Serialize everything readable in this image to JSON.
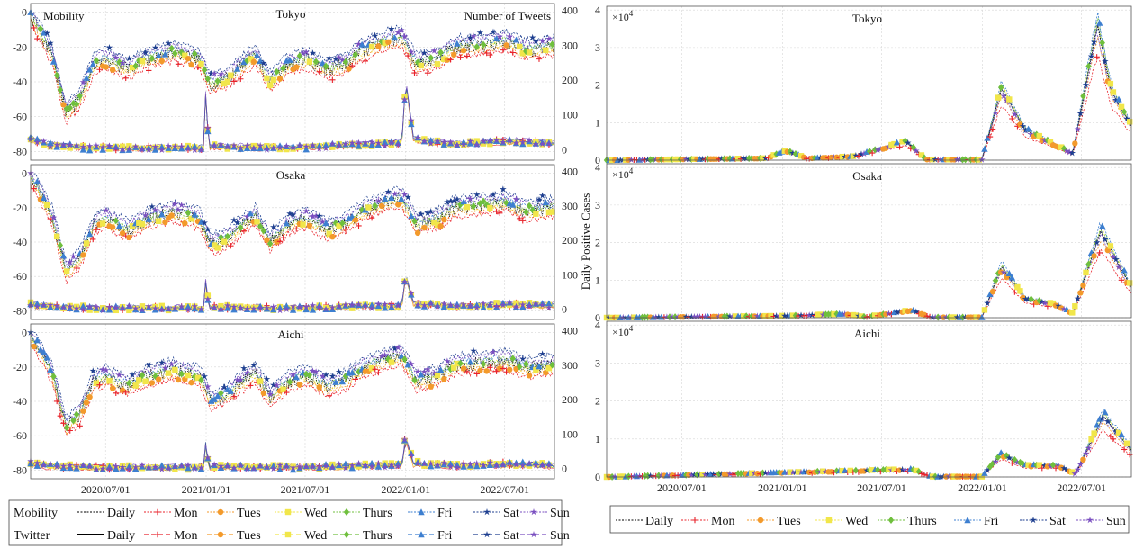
{
  "chart_data": [
    {
      "type": "line",
      "panels": [
        "Tokyo",
        "Osaka",
        "Aichi"
      ],
      "left_axis_label": "Mobility",
      "right_axis_label": "Number of Tweets",
      "y_left_ticks": [
        "0",
        "-20",
        "-40",
        "-60",
        "-80"
      ],
      "y_left_lim": [
        -85,
        5
      ],
      "y_right_ticks": [
        "0",
        "100",
        "200",
        "300",
        "400"
      ],
      "y_right_lim": [
        -30,
        420
      ],
      "x_ticks": [
        "2020/07/01",
        "2021/01/01",
        "2021/07/01",
        "2022/01/01",
        "2022/07/01"
      ],
      "x_range": [
        "2020-02-15",
        "2022-09-30"
      ],
      "grid": true,
      "legend": {
        "placement": "bottom",
        "row_labels": [
          "Mobility",
          "Twitter"
        ],
        "entries": [
          "Daily",
          "Mon",
          "Tues",
          "Wed",
          "Thurs",
          "Fri",
          "Sat",
          "Sun"
        ]
      },
      "series_colors": {
        "Daily": "#000000",
        "Mon": "#e8222a",
        "Tues": "#f39a2b",
        "Wed": "#f1e64a",
        "Thurs": "#6fbf3d",
        "Fri": "#3d7fd0",
        "Sat": "#1d3e8f",
        "Sun": "#7a4fc0"
      },
      "mobility_profile": [
        [
          "2020-02-15",
          -3
        ],
        [
          "2020-03-01",
          -10
        ],
        [
          "2020-03-25",
          -25
        ],
        [
          "2020-04-20",
          -58
        ],
        [
          "2020-05-15",
          -50
        ],
        [
          "2020-06-10",
          -30
        ],
        [
          "2020-07-01",
          -27
        ],
        [
          "2020-08-10",
          -33
        ],
        [
          "2020-09-15",
          -27
        ],
        [
          "2020-11-01",
          -23
        ],
        [
          "2020-12-20",
          -27
        ],
        [
          "2021-01-10",
          -42
        ],
        [
          "2021-02-10",
          -38
        ],
        [
          "2021-03-10",
          -30
        ],
        [
          "2021-04-01",
          -25
        ],
        [
          "2021-04-28",
          -40
        ],
        [
          "2021-06-01",
          -30
        ],
        [
          "2021-07-01",
          -27
        ],
        [
          "2021-08-10",
          -33
        ],
        [
          "2021-09-10",
          -30
        ],
        [
          "2021-10-15",
          -22
        ],
        [
          "2021-12-01",
          -16
        ],
        [
          "2021-12-25",
          -15
        ],
        [
          "2022-01-20",
          -30
        ],
        [
          "2022-03-01",
          -27
        ],
        [
          "2022-04-01",
          -20
        ],
        [
          "2022-05-15",
          -19
        ],
        [
          "2022-07-01",
          -17
        ],
        [
          "2022-08-10",
          -22
        ],
        [
          "2022-09-30",
          -20
        ]
      ],
      "twitter_profile": [
        [
          "2020-02-15",
          30
        ],
        [
          "2020-03-20",
          15
        ],
        [
          "2020-06-01",
          5
        ],
        [
          "2020-12-28",
          5
        ],
        [
          "2021-01-01",
          210
        ],
        [
          "2021-01-05",
          10
        ],
        [
          "2021-06-01",
          5
        ],
        [
          "2021-12-25",
          20
        ],
        [
          "2022-01-01",
          200
        ],
        [
          "2022-01-15",
          30
        ],
        [
          "2022-04-01",
          15
        ],
        [
          "2022-07-01",
          25
        ],
        [
          "2022-09-30",
          20
        ]
      ]
    },
    {
      "type": "line",
      "panels": [
        "Tokyo",
        "Osaka",
        "Aichi"
      ],
      "ylabel": "Daily Positive Cases",
      "y_ticks": [
        "0",
        "1",
        "2",
        "3",
        "4"
      ],
      "y_lim": [
        0,
        4.1
      ],
      "y_multiplier": "×10^4",
      "x_ticks": [
        "2020/07/01",
        "2021/01/01",
        "2021/07/01",
        "2022/01/01",
        "2022/07/01"
      ],
      "x_range": [
        "2020-02-15",
        "2022-09-30"
      ],
      "grid": true,
      "legend": {
        "placement": "bottom",
        "entries": [
          "Daily",
          "Mon",
          "Tues",
          "Wed",
          "Thurs",
          "Fri",
          "Sat",
          "Sun"
        ]
      },
      "cases_profiles": {
        "Tokyo": [
          [
            "2020-02-15",
            0
          ],
          [
            "2020-12-01",
            0.05
          ],
          [
            "2021-01-08",
            0.25
          ],
          [
            "2021-02-15",
            0.05
          ],
          [
            "2021-05-10",
            0.1
          ],
          [
            "2021-08-15",
            0.5
          ],
          [
            "2021-09-20",
            0.02
          ],
          [
            "2021-12-31",
            0.01
          ],
          [
            "2022-02-05",
            1.9
          ],
          [
            "2022-03-20",
            0.8
          ],
          [
            "2022-05-15",
            0.4
          ],
          [
            "2022-06-15",
            0.18
          ],
          [
            "2022-07-30",
            3.6
          ],
          [
            "2022-08-25",
            1.8
          ],
          [
            "2022-09-30",
            0.9
          ]
        ],
        "Osaka": [
          [
            "2020-02-15",
            0
          ],
          [
            "2021-01-10",
            0.05
          ],
          [
            "2021-04-25",
            0.1
          ],
          [
            "2021-06-01",
            0.02
          ],
          [
            "2021-08-25",
            0.2
          ],
          [
            "2021-10-01",
            0.01
          ],
          [
            "2021-12-31",
            0.01
          ],
          [
            "2022-02-05",
            1.35
          ],
          [
            "2022-03-20",
            0.5
          ],
          [
            "2022-05-15",
            0.35
          ],
          [
            "2022-06-15",
            0.12
          ],
          [
            "2022-08-05",
            2.3
          ],
          [
            "2022-09-30",
            0.8
          ]
        ],
        "Aichi": [
          [
            "2020-02-15",
            0
          ],
          [
            "2021-08-25",
            0.2
          ],
          [
            "2021-10-01",
            0.01
          ],
          [
            "2021-12-31",
            0.01
          ],
          [
            "2022-02-05",
            0.6
          ],
          [
            "2022-03-20",
            0.3
          ],
          [
            "2022-05-20",
            0.3
          ],
          [
            "2022-06-20",
            0.08
          ],
          [
            "2022-08-10",
            1.6
          ],
          [
            "2022-09-30",
            0.7
          ]
        ]
      }
    }
  ]
}
